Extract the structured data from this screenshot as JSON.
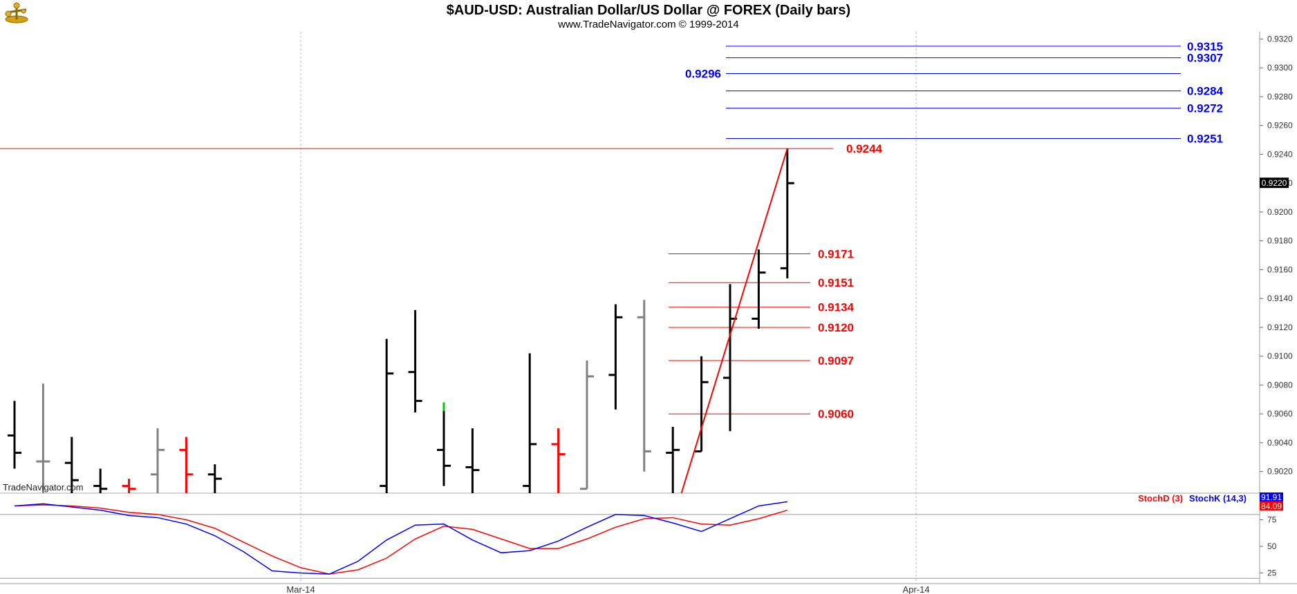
{
  "header": {
    "title": "$AUD-USD:  Australian Dollar/US Dollar @ FOREX  (Daily bars)",
    "subtitle": "www.TradeNavigator.com © 1999-2014",
    "watermark": "TradeNavigator.com"
  },
  "chart_data": [
    {
      "type": "ohlc",
      "panel": "price",
      "ylim": [
        0.9005,
        0.9325
      ],
      "y_ticks": [
        "0.9320",
        "0.9300",
        "0.9280",
        "0.9260",
        "0.9240",
        "0.9220",
        "0.9200",
        "0.9180",
        "0.9160",
        "0.9140",
        "0.9120",
        "0.9100",
        "0.9080",
        "0.9060",
        "0.9040",
        "0.9020"
      ],
      "x_ticks": [
        {
          "label": "Mar-14",
          "index": 10
        },
        {
          "label": "Apr-14",
          "index": 31.5
        }
      ],
      "last_price": {
        "label": "0.9220",
        "value": 0.922
      },
      "grid": "vertical dashed at month starts",
      "bars": [
        {
          "i": 0,
          "o": 0.9045,
          "h": 0.9069,
          "l": 0.9022,
          "c": 0.9033,
          "color": "#000000"
        },
        {
          "i": 1,
          "o": 0.9027,
          "h": 0.9081,
          "l": 0.9005,
          "c": 0.9027,
          "color": "#808080"
        },
        {
          "i": 2,
          "o": 0.9026,
          "h": 0.9044,
          "l": 0.9005,
          "c": 0.9014,
          "color": "#000000"
        },
        {
          "i": 3,
          "o": 0.901,
          "h": 0.9022,
          "l": 0.9005,
          "c": 0.9008,
          "color": "#000000"
        },
        {
          "i": 4,
          "o": 0.901,
          "h": 0.9015,
          "l": 0.9005,
          "c": 0.9008,
          "color": "#ff0000"
        },
        {
          "i": 5,
          "o": 0.9018,
          "h": 0.905,
          "l": 0.9005,
          "c": 0.9035,
          "color": "#808080"
        },
        {
          "i": 6,
          "o": 0.9035,
          "h": 0.9044,
          "l": 0.9005,
          "c": 0.9018,
          "color": "#ff0000"
        },
        {
          "i": 7,
          "o": 0.9018,
          "h": 0.9025,
          "l": 0.9005,
          "c": 0.9015,
          "color": "#000000"
        },
        {
          "i": 13,
          "o": 0.901,
          "h": 0.9112,
          "l": 0.9005,
          "c": 0.9088,
          "color": "#000000"
        },
        {
          "i": 14,
          "o": 0.9089,
          "h": 0.9132,
          "l": 0.9061,
          "c": 0.9069,
          "color": "#000000"
        },
        {
          "i": 15,
          "o": 0.9035,
          "h": 0.9068,
          "l": 0.901,
          "c": 0.9024,
          "color": "#000000",
          "tip": "#00cc00",
          "tip_from": 0.9062
        },
        {
          "i": 16,
          "o": 0.9023,
          "h": 0.905,
          "l": 0.9005,
          "c": 0.9021,
          "color": "#000000"
        },
        {
          "i": 18,
          "o": 0.901,
          "h": 0.9102,
          "l": 0.9005,
          "c": 0.9039,
          "color": "#000000"
        },
        {
          "i": 19,
          "o": 0.9039,
          "h": 0.905,
          "l": 0.9005,
          "c": 0.9032,
          "color": "#ff0000"
        },
        {
          "i": 20,
          "o": 0.9008,
          "h": 0.9097,
          "l": 0.9008,
          "c": 0.9086,
          "color": "#808080"
        },
        {
          "i": 21,
          "o": 0.9087,
          "h": 0.9136,
          "l": 0.9063,
          "c": 0.9127,
          "color": "#000000"
        },
        {
          "i": 22,
          "o": 0.9127,
          "h": 0.9139,
          "l": 0.902,
          "c": 0.9034,
          "color": "#808080"
        },
        {
          "i": 23,
          "o": 0.9033,
          "h": 0.9051,
          "l": 0.9005,
          "c": 0.9035,
          "color": "#000000"
        },
        {
          "i": 24,
          "o": 0.9034,
          "h": 0.91,
          "l": 0.9034,
          "c": 0.9082,
          "color": "#000000"
        },
        {
          "i": 25,
          "o": 0.9085,
          "h": 0.915,
          "l": 0.9048,
          "c": 0.9126,
          "color": "#000000"
        },
        {
          "i": 26,
          "o": 0.9126,
          "h": 0.9174,
          "l": 0.9119,
          "c": 0.9158,
          "color": "#000000"
        },
        {
          "i": 27,
          "o": 0.9161,
          "h": 0.9244,
          "l": 0.9154,
          "c": 0.922,
          "color": "#000000"
        }
      ],
      "trendline": {
        "from": {
          "i": 23.3,
          "value": 0.9005
        },
        "to": {
          "i": 27,
          "value": 0.9244
        },
        "color": "#ff0000"
      },
      "horizontal_line": {
        "value": 0.9244,
        "label": "0.9244",
        "color": "#ff0000"
      },
      "retracement_levels": [
        {
          "value": 0.9171,
          "label": "0.9171",
          "color": "#ff0000"
        },
        {
          "value": 0.9151,
          "label": "0.9151",
          "color": "#ff0000"
        },
        {
          "value": 0.9134,
          "label": "0.9134",
          "color": "#ff0000"
        },
        {
          "value": 0.912,
          "label": "0.9120",
          "color": "#ff0000"
        },
        {
          "value": 0.9097,
          "label": "0.9097",
          "color": "#ff0000"
        },
        {
          "value": 0.906,
          "label": "0.9060",
          "color": "#ff0000"
        }
      ],
      "extension_levels": [
        {
          "value": 0.9315,
          "label": "0.9315",
          "color": "#0000ff",
          "label_side": "right"
        },
        {
          "value": 0.9307,
          "label": "0.9307",
          "color": "#0000ff",
          "label_side": "right"
        },
        {
          "value": 0.9296,
          "label": "0.9296",
          "color": "#0000ff",
          "label_side": "left"
        },
        {
          "value": 0.9284,
          "label": "0.9284",
          "color": "#0000ff",
          "label_side": "right"
        },
        {
          "value": 0.9272,
          "label": "0.9272",
          "color": "#0000ff",
          "label_side": "right"
        },
        {
          "value": 0.9251,
          "label": "0.9251",
          "color": "#0000ff",
          "label_side": "right"
        }
      ]
    },
    {
      "type": "line",
      "panel": "stochastic",
      "ylim": [
        15,
        100
      ],
      "y_ticks": [
        "75",
        "50",
        "25"
      ],
      "reference_lines": [
        80,
        20
      ],
      "legend": [
        {
          "label": "StochD (3)",
          "color": "#ff0000"
        },
        {
          "label": "StochK (14,3)",
          "color": "#0000ff"
        }
      ],
      "last_values": {
        "k": "91.91",
        "d": "84.09"
      },
      "x": [
        0,
        1,
        2,
        3,
        4,
        5,
        6,
        7,
        8,
        9,
        10,
        11,
        12,
        13,
        14,
        15,
        16,
        17,
        18,
        19,
        20,
        21,
        22,
        23,
        24,
        25,
        26,
        27
      ],
      "series": [
        {
          "name": "StochK (14,3)",
          "color": "#0000ff",
          "values": [
            88,
            90,
            87,
            84,
            79,
            77,
            71,
            60,
            45,
            27,
            25,
            24,
            36,
            56,
            70,
            71,
            56,
            44,
            46,
            55,
            68,
            80,
            79,
            72,
            64,
            76,
            88,
            92
          ]
        },
        {
          "name": "StochD (3)",
          "color": "#ff0000",
          "values": [
            88,
            89,
            88,
            86,
            82,
            80,
            75,
            67,
            54,
            41,
            30,
            24,
            28,
            39,
            57,
            69,
            66,
            57,
            48,
            48,
            57,
            68,
            76,
            77,
            71,
            70,
            76,
            84
          ]
        }
      ]
    }
  ]
}
